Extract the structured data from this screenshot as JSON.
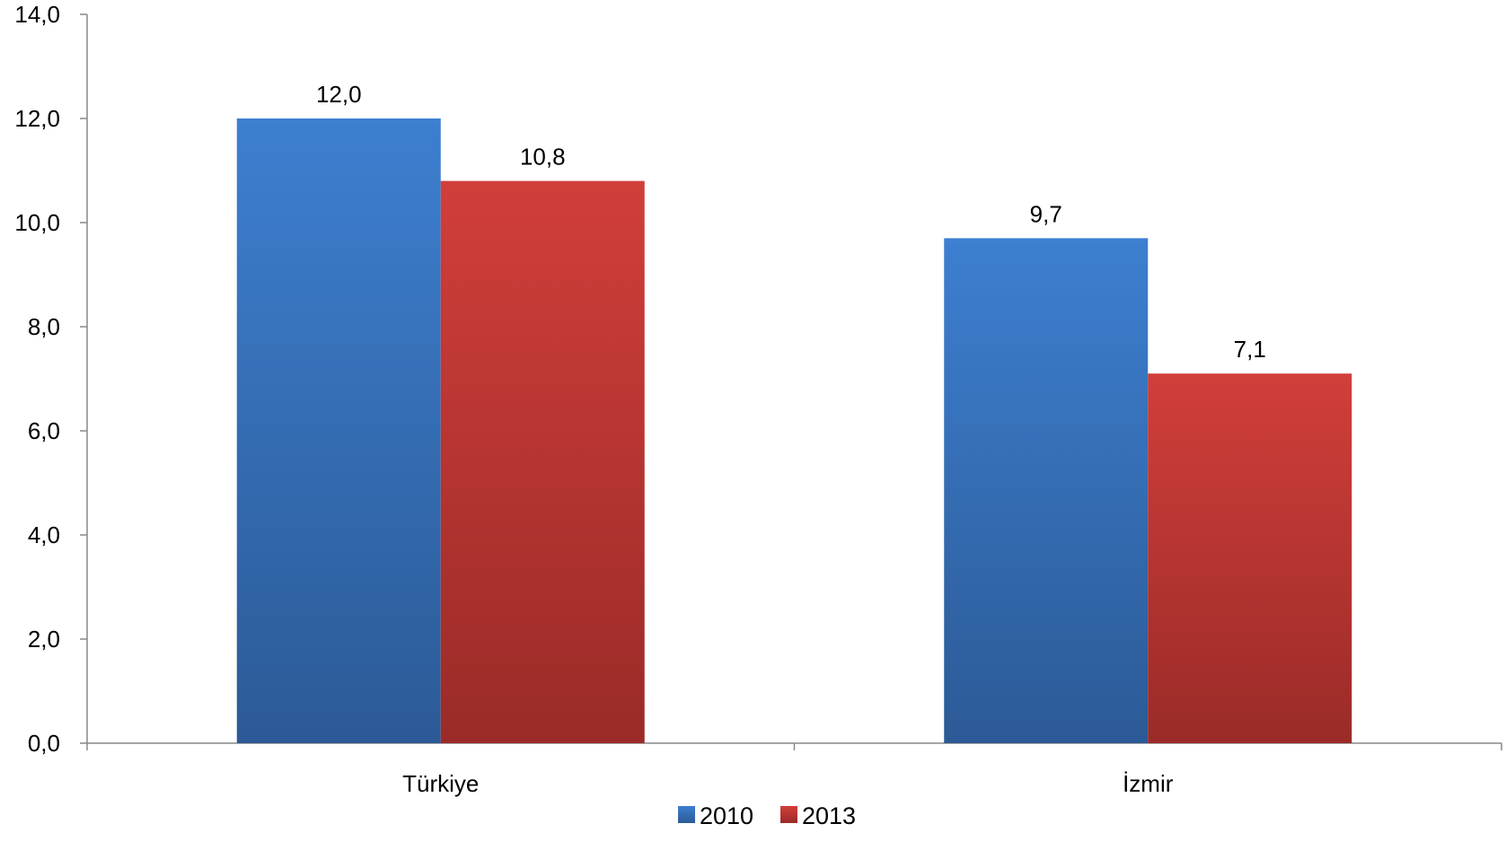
{
  "chart_data": {
    "type": "bar",
    "categories": [
      "Türkiye",
      "İzmir"
    ],
    "series": [
      {
        "name": "2010",
        "values": [
          12.0,
          9.7
        ],
        "labels": [
          "12,0",
          "9,7"
        ]
      },
      {
        "name": "2013",
        "values": [
          10.8,
          7.1
        ],
        "labels": [
          "10,8",
          "7,1"
        ]
      }
    ],
    "ylim": [
      0,
      14
    ],
    "yticks": [
      {
        "value": 0,
        "label": "0,0"
      },
      {
        "value": 2,
        "label": "2,0"
      },
      {
        "value": 4,
        "label": "4,0"
      },
      {
        "value": 6,
        "label": "6,0"
      },
      {
        "value": 8,
        "label": "8,0"
      },
      {
        "value": 10,
        "label": "10,0"
      },
      {
        "value": 12,
        "label": "12,0"
      },
      {
        "value": 14,
        "label": "14,0"
      }
    ],
    "grid": false,
    "legend": "bottom-center",
    "colors": {
      "2010_top": "#3d7fd0",
      "2010_bottom": "#2c5a96",
      "2013_top": "#d13e3a",
      "2013_bottom": "#9a2b28",
      "axis": "#888888"
    }
  }
}
